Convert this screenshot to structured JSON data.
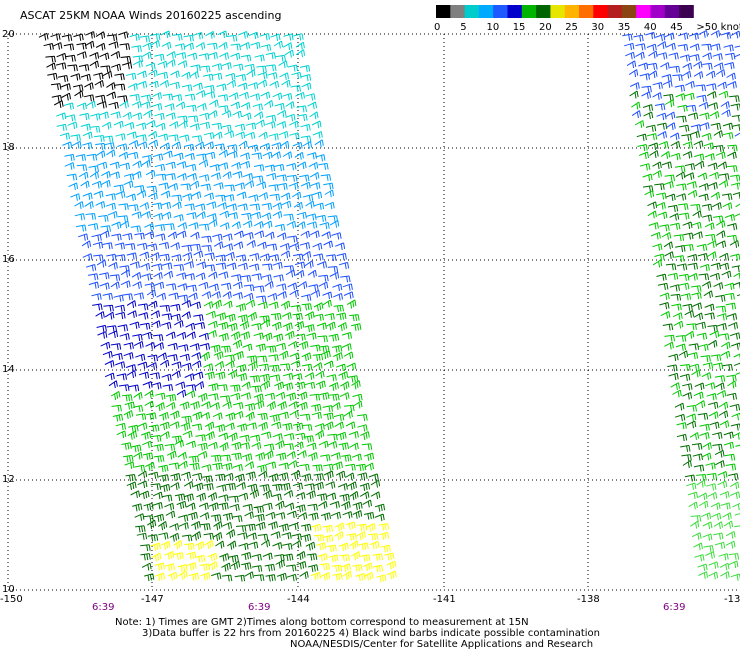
{
  "title": "ASCAT 25KM NOAA Winds 20160225 ascending",
  "colorbar": {
    "colors": [
      "#000000",
      "#808080",
      "#00cccc",
      "#00aaff",
      "#1e5aff",
      "#0000cd",
      "#00b400",
      "#006400",
      "#e6e600",
      "#ffb400",
      "#ff6e00",
      "#ff0000",
      "#b41e1e",
      "#8b4513",
      "#ff00ff",
      "#a000c8",
      "#640096",
      "#3c0050"
    ],
    "labels": [
      "0",
      "5",
      "10",
      "15",
      "20",
      "25",
      "30",
      "35",
      "40",
      "45",
      ">50 knots"
    ]
  },
  "lat_labels": [
    "20",
    "18",
    "16",
    "14",
    "12",
    "10"
  ],
  "lon_labels": [
    "-150",
    "-147",
    "-144",
    "-141",
    "-138",
    "-13"
  ],
  "time_labels": [
    "6:39",
    "6:39",
    "6:39"
  ],
  "notes": [
    "Note: 1) Times are GMT 2)Times along bottom correspond to measurement at 15N",
    "3)Data buffer is 22 hrs from 20160225 4) Black wind barbs indicate possible contamination",
    "NOAA/NESDIS/Center for Satellite Applications and Research"
  ],
  "wind_colors": {
    "contaminated": "#000000",
    "cyan": "#00d2d2",
    "lightblue": "#00a0ff",
    "blue": "#1e50ff",
    "darkblue": "#0000c8",
    "green": "#00c800",
    "darkgreen": "#006e00",
    "yellow": "#ffff00",
    "lightgreen": "#3cdc3c"
  }
}
